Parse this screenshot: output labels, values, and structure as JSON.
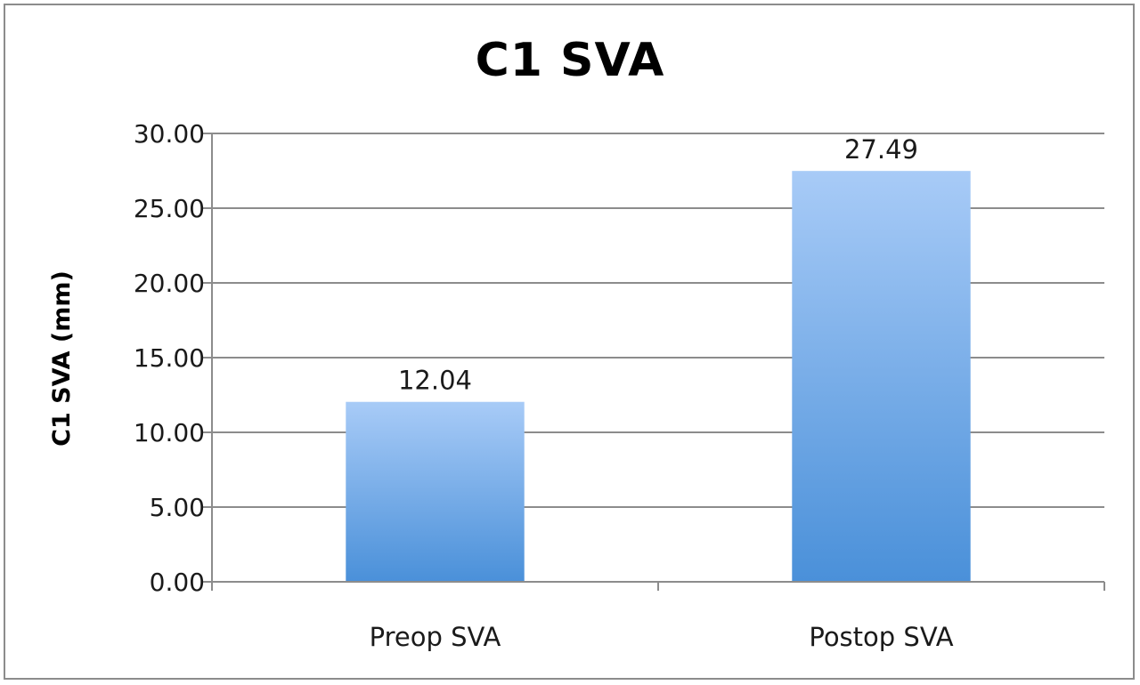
{
  "chart_data": {
    "type": "bar",
    "title": "C1 SVA",
    "xlabel": "",
    "ylabel": "C1 SVA (mm)",
    "categories": [
      "Preop SVA",
      "Postop SVA"
    ],
    "values": [
      12.04,
      27.49
    ],
    "data_labels": [
      "12.04",
      "27.49"
    ],
    "ylim": [
      0,
      30
    ],
    "yticks": [
      0,
      5,
      10,
      15,
      20,
      25,
      30
    ],
    "ytick_labels": [
      "0.00",
      "5.00",
      "10.00",
      "15.00",
      "20.00",
      "25.00",
      "30.00"
    ],
    "grid": true,
    "legend": "none",
    "colors": {
      "bar_top": "#a8cbf7",
      "bar_bottom": "#4a90d9",
      "grid": "#8c8c8c",
      "frame": "#8c8c8c"
    }
  }
}
